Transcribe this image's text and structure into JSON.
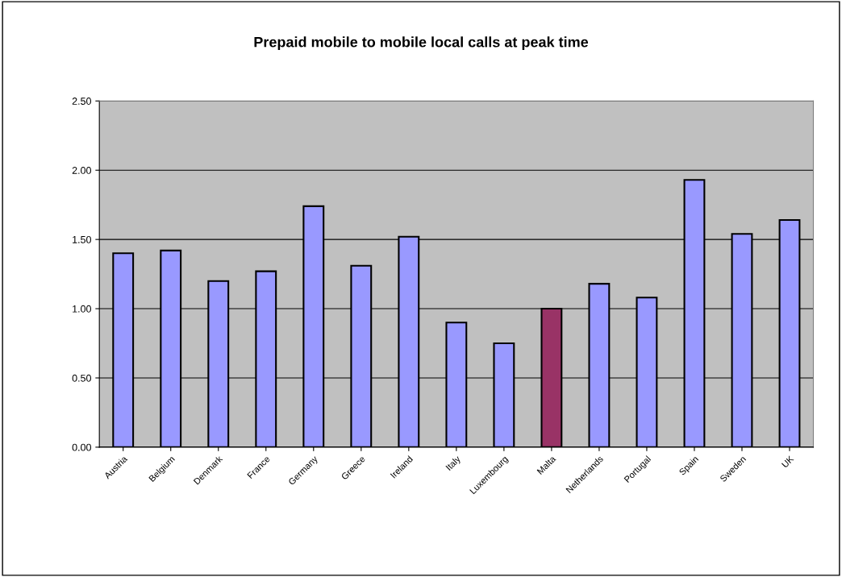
{
  "chart_data": {
    "type": "bar",
    "title": "Prepaid mobile to mobile local calls at peak time",
    "categories": [
      "Austria",
      "Belgium",
      "Denmark",
      "France",
      "Germany",
      "Greece",
      "Ireland",
      "Italy",
      "Luxembourg",
      "Malta",
      "Netherlands",
      "Portugal",
      "Spain",
      "Sweden",
      "UK"
    ],
    "values": [
      1.4,
      1.42,
      1.2,
      1.27,
      1.74,
      1.31,
      1.52,
      0.9,
      0.75,
      1.0,
      1.18,
      1.08,
      1.93,
      1.54,
      1.64
    ],
    "colors": [
      "#9999ff",
      "#9999ff",
      "#9999ff",
      "#9999ff",
      "#9999ff",
      "#9999ff",
      "#9999ff",
      "#9999ff",
      "#9999ff",
      "#993366",
      "#9999ff",
      "#9999ff",
      "#9999ff",
      "#9999ff",
      "#9999ff"
    ],
    "ylim": [
      0,
      2.5
    ],
    "yticks": [
      {
        "value": 0,
        "label": "0.00"
      },
      {
        "value": 0.5,
        "label": "0.50"
      },
      {
        "value": 1,
        "label": "1.00"
      },
      {
        "value": 1.5,
        "label": "1.50"
      },
      {
        "value": 2,
        "label": "2.00"
      },
      {
        "value": 2.5,
        "label": "2.50"
      }
    ],
    "grid": "y"
  }
}
